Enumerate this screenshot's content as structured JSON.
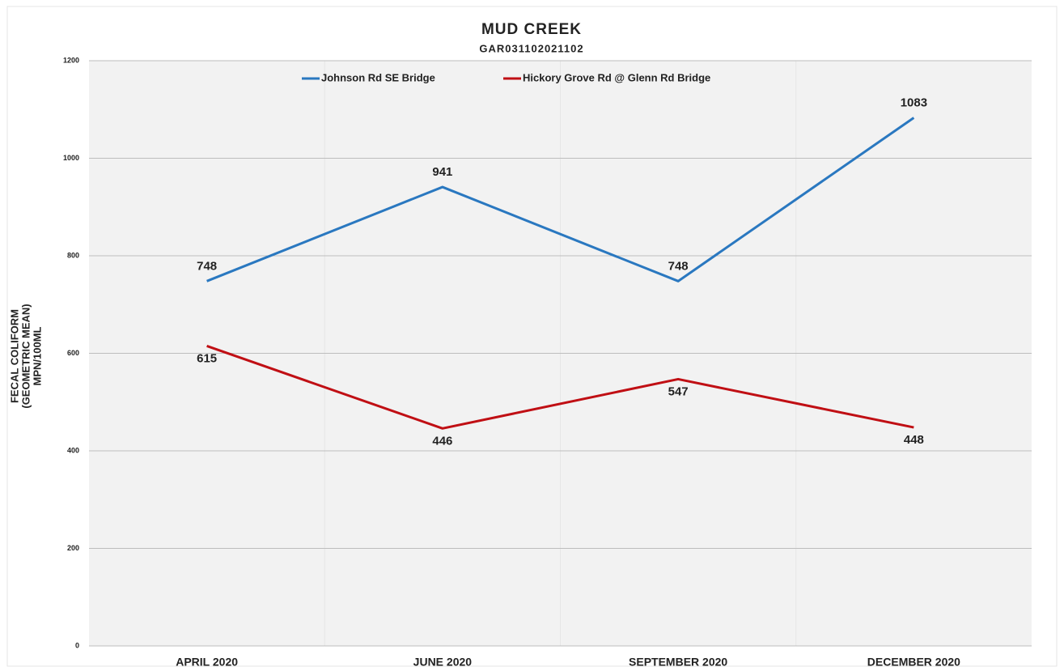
{
  "chart_data": {
    "type": "line",
    "title": "MUD CREEK",
    "subtitle": "GAR031102021102",
    "ylabel": [
      "FECAL COLIFORM",
      "(GEOMETRIC MEAN)",
      "MPN/100ML"
    ],
    "categories": [
      "APRIL 2020",
      "JUNE 2020",
      "SEPTEMBER 2020",
      "DECEMBER 2020"
    ],
    "series": [
      {
        "name": "Johnson Rd SE Bridge",
        "color": "#2a78c0",
        "values": [
          748,
          941,
          748,
          1083
        ],
        "label_position": "above"
      },
      {
        "name": "Hickory Grove Rd @ Glenn Rd Bridge",
        "color": "#c00f14",
        "values": [
          615,
          446,
          547,
          448
        ],
        "label_position": "below"
      }
    ],
    "ylim": [
      0,
      1200
    ],
    "yticks": [
      0,
      200,
      400,
      600,
      800,
      1000,
      1200
    ],
    "grid": true,
    "legend": "top"
  }
}
